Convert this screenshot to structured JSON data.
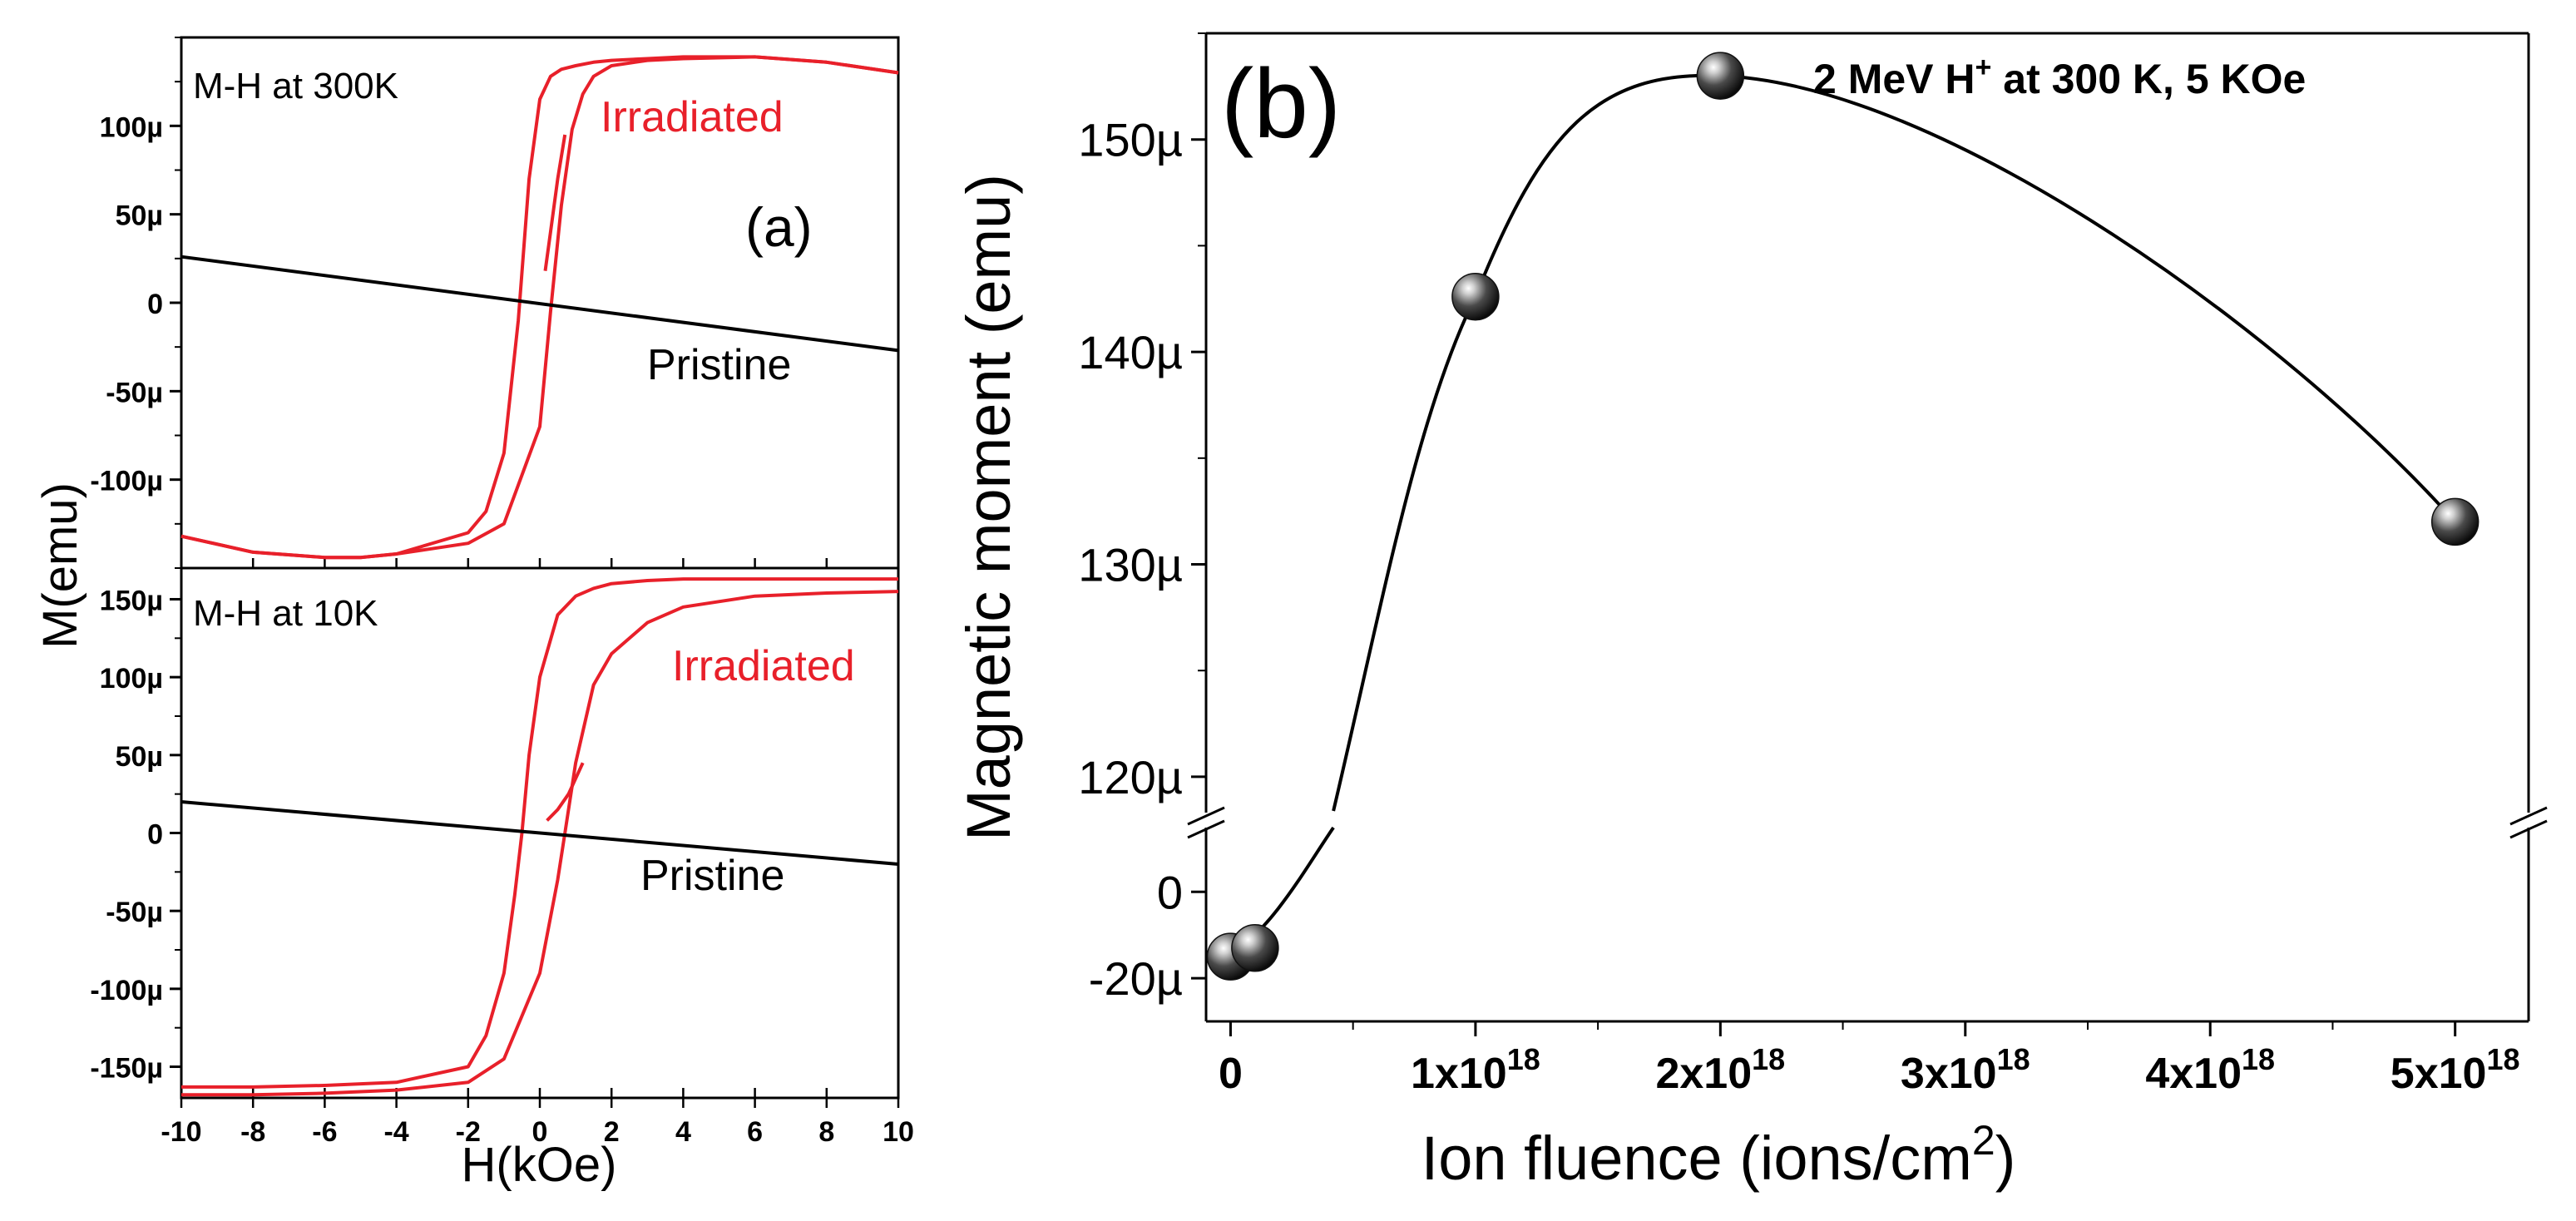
{
  "chart_data": [
    {
      "panel": "a-top",
      "type": "line",
      "title": "M-H at 300K",
      "xlabel": "H(kOe)",
      "ylabel": "M(emu)",
      "xlim": [
        -10,
        10
      ],
      "ylim": [
        -150,
        150
      ],
      "yticks": [
        -100,
        -50,
        0,
        50,
        100
      ],
      "ytick_labels": [
        "-100µ",
        "-50µ",
        "0",
        "50µ",
        "100µ"
      ],
      "annotation": "(a)",
      "series": [
        {
          "name": "Irradiated",
          "color": "#e8202a",
          "branches": [
            {
              "h": [
                -10,
                -8,
                -6,
                -5,
                -4,
                -2,
                -1.5,
                -1,
                -0.6,
                -0.3,
                0,
                0.3,
                0.6,
                1,
                1.5,
                2,
                3,
                4,
                6,
                8,
                10
              ],
              "m": [
                -132,
                -141,
                -144,
                -144,
                -142,
                -130,
                -118,
                -85,
                -10,
                70,
                115,
                128,
                132,
                134,
                136,
                137,
                138,
                139,
                139,
                136,
                130
              ]
            },
            {
              "h": [
                -10,
                -8,
                -6,
                -5,
                -4,
                -2,
                -1,
                0,
                0.3,
                0.6,
                0.9,
                1.2,
                1.5,
                2,
                3,
                4,
                6,
                8,
                10
              ],
              "m": [
                -132,
                -141,
                -144,
                -144,
                -142,
                -136,
                -125,
                -70,
                -5,
                55,
                98,
                118,
                128,
                134,
                137,
                138,
                139,
                136,
                130
              ]
            },
            {
              "h": [
                0.15,
                0.3,
                0.5,
                0.7
              ],
              "m": [
                18,
                40,
                70,
                95
              ]
            }
          ]
        },
        {
          "name": "Pristine",
          "color": "#000000",
          "h": [
            -10,
            10
          ],
          "m": [
            26,
            -27
          ]
        }
      ]
    },
    {
      "panel": "a-bottom",
      "type": "line",
      "title": "M-H at 10K",
      "xlabel": "H(kOe)",
      "ylabel": "M(emu)",
      "xlim": [
        -10,
        10
      ],
      "ylim": [
        -170,
        170
      ],
      "xticks": [
        -10,
        -8,
        -6,
        -4,
        -2,
        0,
        2,
        4,
        6,
        8,
        10
      ],
      "xtick_labels": [
        "-10",
        "-8",
        "-6",
        "-4",
        "-2",
        "0",
        "2",
        "4",
        "6",
        "8",
        "10"
      ],
      "yticks": [
        -150,
        -100,
        -50,
        0,
        50,
        100,
        150
      ],
      "ytick_labels": [
        "-150µ",
        "-100µ",
        "-50µ",
        "0",
        "50µ",
        "100µ",
        "150µ"
      ],
      "series": [
        {
          "name": "Irradiated",
          "color": "#e8202a",
          "branches": [
            {
              "h": [
                -10,
                -8,
                -6,
                -4,
                -2,
                -1.5,
                -1,
                -0.7,
                -0.5,
                -0.3,
                0,
                0.5,
                1,
                1.5,
                2,
                3,
                4,
                6,
                8,
                10
              ],
              "m": [
                -163,
                -163,
                -162,
                -160,
                -150,
                -130,
                -90,
                -40,
                0,
                50,
                100,
                140,
                152,
                157,
                160,
                162,
                163,
                163,
                163,
                163
              ]
            },
            {
              "h": [
                -10,
                -8,
                -6,
                -4,
                -2,
                -1,
                0,
                0.5,
                0.7,
                1,
                1.5,
                2,
                3,
                4,
                6,
                8,
                10
              ],
              "m": [
                -168,
                -168,
                -167,
                -165,
                -160,
                -145,
                -90,
                -30,
                0,
                45,
                95,
                115,
                135,
                145,
                152,
                154,
                155
              ]
            },
            {
              "h": [
                0.2,
                0.5,
                0.8,
                1.2
              ],
              "m": [
                8,
                15,
                25,
                45
              ]
            }
          ]
        },
        {
          "name": "Pristine",
          "color": "#000000",
          "h": [
            -10,
            10
          ],
          "m": [
            20,
            -20
          ]
        }
      ]
    },
    {
      "panel": "b",
      "type": "scatter",
      "title": "2 MeV H⁺ at 300 K,  5 KOe",
      "title_main": "2 MeV H",
      "title_sup": "+",
      "title_tail": " at 300 K,  5 KOe",
      "panel_label": "(b)",
      "xlabel": "Ion fluence (ions/cm²)",
      "xlabel_main": "Ion fluence (ions/cm",
      "xlabel_sup": "2",
      "xlabel_tail": ")",
      "ylabel": "Magnetic moment (emu)",
      "xlim": [
        -1e+17,
        5.3e+18
      ],
      "xticks": [
        0,
        1e+18,
        2e+18,
        3e+18,
        4e+18,
        5e+18
      ],
      "xtick_labels": [
        {
          "base": "0",
          "exp": ""
        },
        {
          "base": "1x10",
          "exp": "18"
        },
        {
          "base": "2x10",
          "exp": "18"
        },
        {
          "base": "3x10",
          "exp": "18"
        },
        {
          "base": "4x10",
          "exp": "18"
        },
        {
          "base": "5x10",
          "exp": "18"
        }
      ],
      "y_break": true,
      "y_upper_range": [
        118,
        155
      ],
      "y_lower_range": [
        -30,
        12
      ],
      "yticks_upper": [
        120,
        130,
        140,
        150
      ],
      "ytick_labels_upper": [
        "120µ",
        "130µ",
        "140µ",
        "150µ"
      ],
      "yticks_lower": [
        0,
        -20
      ],
      "ytick_labels_lower": [
        "0",
        "-20µ"
      ],
      "x": [
        0,
        1e+17,
        1e+18,
        2e+18,
        5e+18
      ],
      "y": [
        -15,
        -13,
        142.6,
        153,
        132
      ],
      "curve_color": "#000000",
      "marker": "sphere"
    }
  ]
}
